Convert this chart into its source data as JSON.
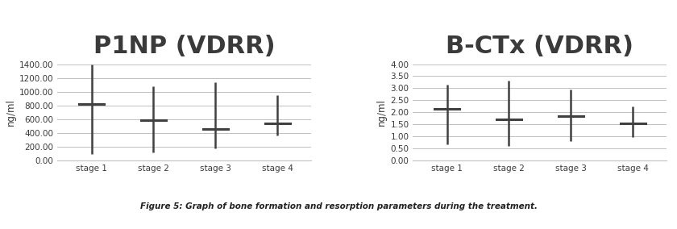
{
  "chart1": {
    "title": "P1NP (VDRR)",
    "ylabel": "ng/ml",
    "categories": [
      "stage 1",
      "stage 2",
      "stage 3",
      "stage 4"
    ],
    "medians": [
      820,
      580,
      460,
      540
    ],
    "mins": [
      90,
      110,
      170,
      360
    ],
    "maxs": [
      1400,
      1080,
      1140,
      950
    ],
    "ylim": [
      0,
      1400
    ],
    "yticks": [
      0,
      200,
      400,
      600,
      800,
      1000,
      1200,
      1400
    ],
    "ytick_labels": [
      "0.00",
      "200.00",
      "400.00",
      "600.00",
      "800.00",
      "1000.00",
      "1200.00",
      "1400.00"
    ]
  },
  "chart2": {
    "title": "B-CTx (VDRR)",
    "ylabel": "ng/ml",
    "categories": [
      "stage 1",
      "stage 2",
      "stage 3",
      "stage 4"
    ],
    "medians": [
      2.15,
      1.7,
      1.85,
      1.52
    ],
    "mins": [
      0.65,
      0.6,
      0.8,
      0.95
    ],
    "maxs": [
      3.15,
      3.3,
      2.95,
      2.25
    ],
    "ylim": [
      0,
      4.0
    ],
    "yticks": [
      0.0,
      0.5,
      1.0,
      1.5,
      2.0,
      2.5,
      3.0,
      3.5,
      4.0
    ],
    "ytick_labels": [
      "0.00",
      "0.50",
      "1.00",
      "1.50",
      "2.00",
      "2.50",
      "3.00",
      "3.50",
      "4.00"
    ]
  },
  "caption": "Figure 5: Graph of bone formation and resorption parameters during the treatment.",
  "title_color": "#3a3a3a",
  "line_color": "#404040",
  "bg_color": "#ffffff",
  "grid_color": "#c0c0c0",
  "tick_label_color": "#3a3a3a",
  "title_fontsize": 22,
  "axis_label_fontsize": 8.5,
  "tick_fontsize": 7.5,
  "caption_fontsize": 7.5
}
